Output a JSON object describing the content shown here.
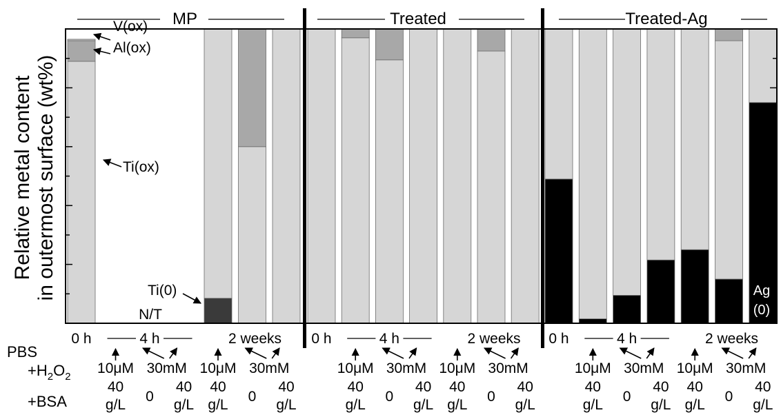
{
  "chart_data": {
    "type": "bar",
    "stacked": true,
    "ylabel_line1": "Relative metal content",
    "ylabel_line2": "in outermost surface (wt%)",
    "ylim": [
      0,
      100
    ],
    "groups": [
      {
        "label": "MP"
      },
      {
        "label": "Treated"
      },
      {
        "label": "Treated-Ag"
      }
    ],
    "series": [
      {
        "name": "Ag(0)",
        "color": "#000000"
      },
      {
        "name": "Ti(0)",
        "color": "#3a3a3a"
      },
      {
        "name": "Ti(ox)",
        "color": "#d6d6d6"
      },
      {
        "name": "Al(ox)",
        "color": "#a8a8a8"
      },
      {
        "name": "V(ox)",
        "color": "#bcbcbc"
      }
    ],
    "bars": [
      {
        "group": 0,
        "stack": {
          "Ti(ox)": 89,
          "Al(ox)": 7,
          "V(ox)": 0.5
        }
      },
      {
        "group": 0,
        "nt": true
      },
      {
        "group": 0,
        "nt": true
      },
      {
        "group": 0,
        "nt": true
      },
      {
        "group": 0,
        "stack": {
          "Ti(0)": 8.5,
          "Ti(ox)": 91.5
        }
      },
      {
        "group": 0,
        "stack": {
          "Ti(ox)": 60,
          "Al(ox)": 40
        }
      },
      {
        "group": 0,
        "stack": {
          "Ti(ox)": 100
        }
      },
      {
        "group": 1,
        "stack": {
          "Ti(ox)": 100
        }
      },
      {
        "group": 1,
        "stack": {
          "Ti(ox)": 97,
          "Al(ox)": 3
        }
      },
      {
        "group": 1,
        "stack": {
          "Ti(ox)": 89.5,
          "Al(ox)": 10.5
        }
      },
      {
        "group": 1,
        "stack": {
          "Ti(ox)": 100
        }
      },
      {
        "group": 1,
        "stack": {
          "Ti(ox)": 100
        }
      },
      {
        "group": 1,
        "stack": {
          "Ti(ox)": 92.5,
          "Al(ox)": 7.5
        }
      },
      {
        "group": 1,
        "stack": {
          "Ti(ox)": 100
        }
      },
      {
        "group": 2,
        "stack": {
          "Ag(0)": 49,
          "Ti(ox)": 51
        }
      },
      {
        "group": 2,
        "stack": {
          "Ag(0)": 1.5,
          "Ti(ox)": 98.5
        }
      },
      {
        "group": 2,
        "stack": {
          "Ag(0)": 9.5,
          "Ti(ox)": 90.5
        }
      },
      {
        "group": 2,
        "stack": {
          "Ag(0)": 21.5,
          "Ti(ox)": 78.5
        }
      },
      {
        "group": 2,
        "stack": {
          "Ag(0)": 25,
          "Ti(ox)": 75
        }
      },
      {
        "group": 2,
        "stack": {
          "Ag(0)": 15,
          "Ti(ox)": 81,
          "Al(ox)": 4
        }
      },
      {
        "group": 2,
        "stack": {
          "Ag(0)": 75,
          "Ti(ox)": 25
        }
      }
    ],
    "annotations": {
      "v_ox": "V(ox)",
      "al_ox": "Al(ox)",
      "ti_ox": "Ti(ox)",
      "ti_0": "Ti(0)",
      "nt": "N/T",
      "ag_line1": "Ag",
      "ag_line2": "(0)"
    },
    "row_labels": {
      "pbs": "PBS",
      "h2o2_prefix": "+H",
      "h2o2_sub1": "2",
      "h2o2_mid": "O",
      "h2o2_sub2": "2",
      "bsa": "+BSA"
    },
    "time_labels": {
      "t0": "0 h",
      "t4": "4 h",
      "t2w": "2 weeks"
    },
    "condition_labels": {
      "h2o2_low": "10μM",
      "h2o2_high": "30mM",
      "bsa_line1": "40",
      "bsa_line2": "g/L",
      "bsa_zero": "0"
    }
  }
}
